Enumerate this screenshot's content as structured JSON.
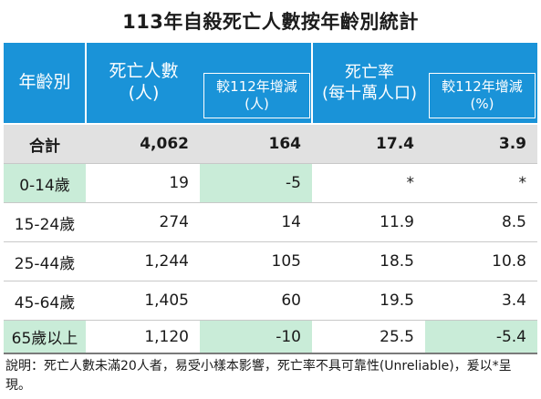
{
  "title": "113年自殺死亡人數按年齡別統計",
  "headers": {
    "age": "年齡別",
    "deaths": "死亡人數\n(人)",
    "deaths_change": "較112年增減\n(人)",
    "rate": "死亡率",
    "rate_sub": "(每十萬人口)",
    "rate_change": "較112年增減\n(%)"
  },
  "rows": [
    {
      "age": "合計",
      "deaths": "4,062",
      "deaths_change": "164",
      "rate": "17.4",
      "rate_change": "3.9"
    },
    {
      "age": "0-14歲",
      "deaths": "19",
      "deaths_change": "-5",
      "rate": "*",
      "rate_change": "*"
    },
    {
      "age": "15-24歲",
      "deaths": "274",
      "deaths_change": "14",
      "rate": "11.9",
      "rate_change": "8.5"
    },
    {
      "age": "25-44歲",
      "deaths": "1,244",
      "deaths_change": "105",
      "rate": "18.5",
      "rate_change": "10.8"
    },
    {
      "age": "45-64歲",
      "deaths": "1,405",
      "deaths_change": "60",
      "rate": "19.5",
      "rate_change": "3.4"
    },
    {
      "age": "65歲以上",
      "deaths": "1,120",
      "deaths_change": "-10",
      "rate": "25.5",
      "rate_change": "-5.4"
    }
  ],
  "note": "說明：死亡人數未滿20人者，易受小樣本影響，死亡率不具可靠性(Unreliable)，爰以*呈現。",
  "colors": {
    "header": "#1a93d8",
    "total_row": "#e1e1e1",
    "highlight": "#c9ecd8"
  }
}
